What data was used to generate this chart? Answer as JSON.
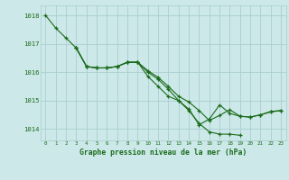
{
  "title": "Graphe pression niveau de la mer (hPa)",
  "bg_color": "#cce8e8",
  "grid_color": "#aacece",
  "line_color": "#1a6b1a",
  "xlim_min": -0.5,
  "xlim_max": 23.5,
  "ylim_min": 1013.6,
  "ylim_max": 1018.35,
  "yticks": [
    1014,
    1015,
    1016,
    1017,
    1018
  ],
  "xticks": [
    0,
    1,
    2,
    3,
    4,
    5,
    6,
    7,
    8,
    9,
    10,
    11,
    12,
    13,
    14,
    15,
    16,
    17,
    18,
    19,
    20,
    21,
    22,
    23
  ],
  "series": [
    {
      "x": [
        0,
        1,
        2,
        3,
        4,
        5,
        6,
        7,
        8,
        9,
        10,
        11,
        12,
        13,
        14,
        15,
        16,
        17,
        18,
        19
      ],
      "y": [
        1018.0,
        1017.55,
        1017.2,
        1016.85,
        1016.2,
        1016.15,
        1016.15,
        1016.2,
        1016.35,
        1016.35,
        1016.0,
        1015.75,
        1015.4,
        1015.0,
        1014.65,
        1014.2,
        1013.9,
        1013.82,
        1013.82,
        1013.78
      ]
    },
    {
      "x": [
        3,
        4,
        5,
        6,
        7,
        8,
        9,
        10,
        11,
        12,
        13,
        14,
        15,
        16,
        17,
        18,
        19,
        20,
        21,
        22,
        23
      ],
      "y": [
        1016.85,
        1016.2,
        1016.15,
        1016.15,
        1016.2,
        1016.35,
        1016.35,
        1015.85,
        1015.5,
        1015.15,
        1015.0,
        1014.7,
        1014.15,
        1014.35,
        1014.85,
        1014.55,
        1014.45,
        1014.42,
        1014.5,
        1014.6,
        1014.65
      ]
    },
    {
      "x": [
        3,
        4,
        5,
        6,
        7,
        8,
        9,
        10,
        11,
        12,
        13,
        14,
        15,
        16,
        17,
        18,
        19,
        20,
        21,
        22,
        23
      ],
      "y": [
        1016.85,
        1016.2,
        1016.15,
        1016.15,
        1016.2,
        1016.35,
        1016.35,
        1016.05,
        1015.82,
        1015.5,
        1015.15,
        1014.95,
        1014.65,
        1014.3,
        1014.48,
        1014.68,
        1014.45,
        1014.42,
        1014.5,
        1014.62,
        1014.65
      ]
    }
  ]
}
